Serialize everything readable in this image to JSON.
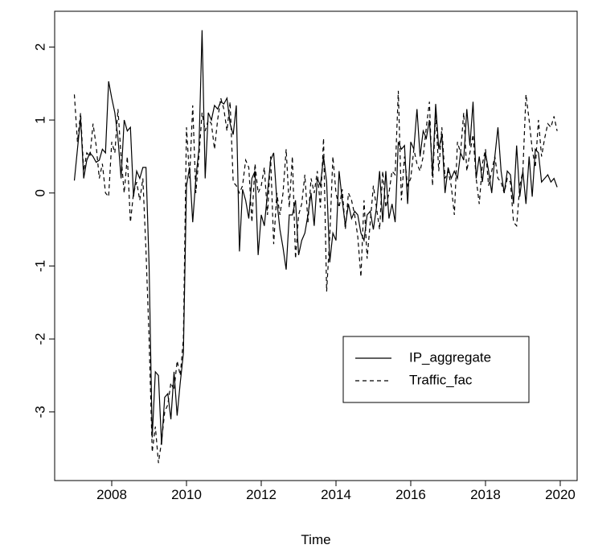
{
  "chart_data": {
    "type": "line",
    "xlabel": "Time",
    "x": [
      2007,
      2007.083,
      2007.167,
      2007.25,
      2007.333,
      2007.417,
      2007.5,
      2007.583,
      2007.667,
      2007.75,
      2007.833,
      2007.917,
      2008,
      2008.083,
      2008.167,
      2008.25,
      2008.333,
      2008.417,
      2008.5,
      2008.583,
      2008.667,
      2008.75,
      2008.833,
      2008.917,
      2009,
      2009.083,
      2009.167,
      2009.25,
      2009.333,
      2009.417,
      2009.5,
      2009.583,
      2009.667,
      2009.75,
      2009.833,
      2009.917,
      2010,
      2010.083,
      2010.167,
      2010.25,
      2010.333,
      2010.417,
      2010.5,
      2010.583,
      2010.667,
      2010.75,
      2010.833,
      2010.917,
      2011,
      2011.083,
      2011.167,
      2011.25,
      2011.333,
      2011.417,
      2011.5,
      2011.583,
      2011.667,
      2011.75,
      2011.833,
      2011.917,
      2012,
      2012.083,
      2012.167,
      2012.25,
      2012.333,
      2012.417,
      2012.5,
      2012.583,
      2012.667,
      2012.75,
      2012.833,
      2012.917,
      2013,
      2013.083,
      2013.167,
      2013.25,
      2013.333,
      2013.417,
      2013.5,
      2013.583,
      2013.667,
      2013.75,
      2013.833,
      2013.917,
      2014,
      2014.083,
      2014.167,
      2014.25,
      2014.333,
      2014.417,
      2014.5,
      2014.583,
      2014.667,
      2014.75,
      2014.833,
      2014.917,
      2015,
      2015.083,
      2015.167,
      2015.25,
      2015.333,
      2015.417,
      2015.5,
      2015.583,
      2015.667,
      2015.75,
      2015.833,
      2015.917,
      2016,
      2016.083,
      2016.167,
      2016.25,
      2016.333,
      2016.417,
      2016.5,
      2016.583,
      2016.667,
      2016.75,
      2016.833,
      2016.917,
      2017,
      2017.083,
      2017.167,
      2017.25,
      2017.333,
      2017.417,
      2017.5,
      2017.583,
      2017.667,
      2017.75,
      2017.833,
      2017.917,
      2018,
      2018.083,
      2018.167,
      2018.25,
      2018.333,
      2018.417,
      2018.5,
      2018.583,
      2018.667,
      2018.75,
      2018.833,
      2018.917,
      2019,
      2019.083,
      2019.167,
      2019.25,
      2019.333,
      2019.417,
      2019.5,
      2019.583,
      2019.667,
      2019.75,
      2019.833,
      2019.917
    ],
    "series": [
      {
        "name": "IP_aggregate",
        "color": "#000000",
        "dash": "solid",
        "values": [
          0.17,
          0.6,
          1.03,
          0.2,
          0.45,
          0.55,
          0.5,
          0.42,
          0.45,
          0.6,
          0.55,
          1.53,
          1.3,
          1.1,
          0.75,
          0.2,
          1.0,
          0.85,
          0.9,
          -0.05,
          0.3,
          0.2,
          0.35,
          0.35,
          -1.0,
          -3.35,
          -2.45,
          -2.5,
          -3.45,
          -2.8,
          -2.75,
          -3.1,
          -2.45,
          -3.05,
          -2.6,
          -2.2,
          0.1,
          0.35,
          -0.4,
          0.2,
          0.6,
          2.23,
          0.2,
          1.1,
          1.0,
          1.2,
          1.15,
          1.25,
          1.22,
          1.3,
          0.95,
          0.8,
          1.2,
          -0.8,
          0.05,
          -0.1,
          -0.35,
          0.2,
          0.3,
          -0.85,
          -0.3,
          -0.45,
          0.0,
          0.45,
          0.55,
          -0.1,
          -0.5,
          -0.75,
          -1.05,
          -0.3,
          -0.3,
          -0.1,
          -0.85,
          -0.65,
          -0.55,
          -0.3,
          0.0,
          -0.45,
          0.2,
          0.1,
          0.5,
          0.15,
          -0.95,
          -0.55,
          -0.65,
          0.3,
          -0.1,
          -0.45,
          -0.15,
          -0.35,
          -0.25,
          -0.3,
          -0.55,
          -0.65,
          -0.3,
          -0.25,
          -0.5,
          -0.2,
          0.3,
          -0.4,
          0.3,
          -0.35,
          -0.15,
          -0.4,
          0.7,
          0.6,
          0.65,
          -0.15,
          0.7,
          0.6,
          1.15,
          0.5,
          0.85,
          0.75,
          1.0,
          0.25,
          1.22,
          0.6,
          0.8,
          0.0,
          0.35,
          0.2,
          0.3,
          0.2,
          0.55,
          0.45,
          1.15,
          0.65,
          1.25,
          0.2,
          0.5,
          0.15,
          0.55,
          0.3,
          0.0,
          0.5,
          0.9,
          0.3,
          0.0,
          0.3,
          0.25,
          -0.15,
          0.65,
          -0.05,
          0.3,
          -0.15,
          0.5,
          -0.05,
          0.6,
          0.55,
          0.15,
          0.2,
          0.25,
          0.15,
          0.2,
          0.08
        ]
      },
      {
        "name": "Traffic_fac",
        "color": "#000000",
        "dash": "dashed",
        "values": [
          1.35,
          0.7,
          1.1,
          0.3,
          0.55,
          0.5,
          0.95,
          0.65,
          0.2,
          0.4,
          0.0,
          -0.05,
          0.7,
          0.55,
          1.15,
          0.5,
          0.0,
          0.5,
          -0.4,
          0.0,
          0.15,
          -0.1,
          0.2,
          -0.8,
          -2.0,
          -3.55,
          -3.2,
          -3.7,
          -3.4,
          -3.0,
          -2.9,
          -2.6,
          -2.7,
          -2.3,
          -2.5,
          -2.0,
          0.9,
          0.2,
          1.2,
          0.0,
          0.5,
          1.1,
          0.85,
          1.0,
          0.95,
          0.6,
          1.0,
          1.3,
          1.15,
          0.85,
          1.25,
          0.15,
          0.1,
          0.0,
          0.1,
          0.45,
          0.35,
          -0.4,
          0.4,
          0.0,
          0.1,
          0.35,
          -0.3,
          0.5,
          -0.7,
          0.0,
          -0.3,
          0.0,
          0.6,
          -0.2,
          0.5,
          -0.9,
          -0.3,
          -0.15,
          0.25,
          -0.4,
          0.2,
          0.0,
          0.3,
          -0.2,
          0.75,
          -1.35,
          -0.6,
          0.5,
          0.0,
          -0.2,
          0.05,
          -0.5,
          0.0,
          -0.1,
          -0.3,
          -0.6,
          -1.15,
          -0.1,
          -0.9,
          -0.4,
          0.1,
          -0.2,
          -0.5,
          0.3,
          -0.2,
          0.0,
          0.3,
          0.25,
          1.4,
          -0.1,
          0.5,
          0.1,
          0.2,
          0.6,
          0.4,
          0.3,
          0.5,
          0.9,
          1.25,
          0.1,
          1.1,
          0.3,
          0.9,
          0.2,
          0.3,
          0.1,
          -0.3,
          0.7,
          0.55,
          1.1,
          0.3,
          0.55,
          0.8,
          0.2,
          -0.15,
          0.4,
          0.6,
          0.1,
          0.3,
          0.5,
          0.2,
          0.15,
          0.0,
          0.2,
          0.15,
          -0.4,
          -0.45,
          0.1,
          0.3,
          1.35,
          1.0,
          0.6,
          0.35,
          1.0,
          0.5,
          0.75,
          0.95,
          0.9,
          1.05,
          0.85
        ]
      }
    ],
    "xlim": [
      2006.473,
      2020.452
    ],
    "ylim": [
      -3.94,
      2.49
    ],
    "xticks": [
      2008,
      2010,
      2012,
      2014,
      2016,
      2018,
      2020
    ],
    "yticks": [
      -3,
      -2,
      -1,
      0,
      1,
      2
    ],
    "legend": "bottomright",
    "grid": false
  }
}
